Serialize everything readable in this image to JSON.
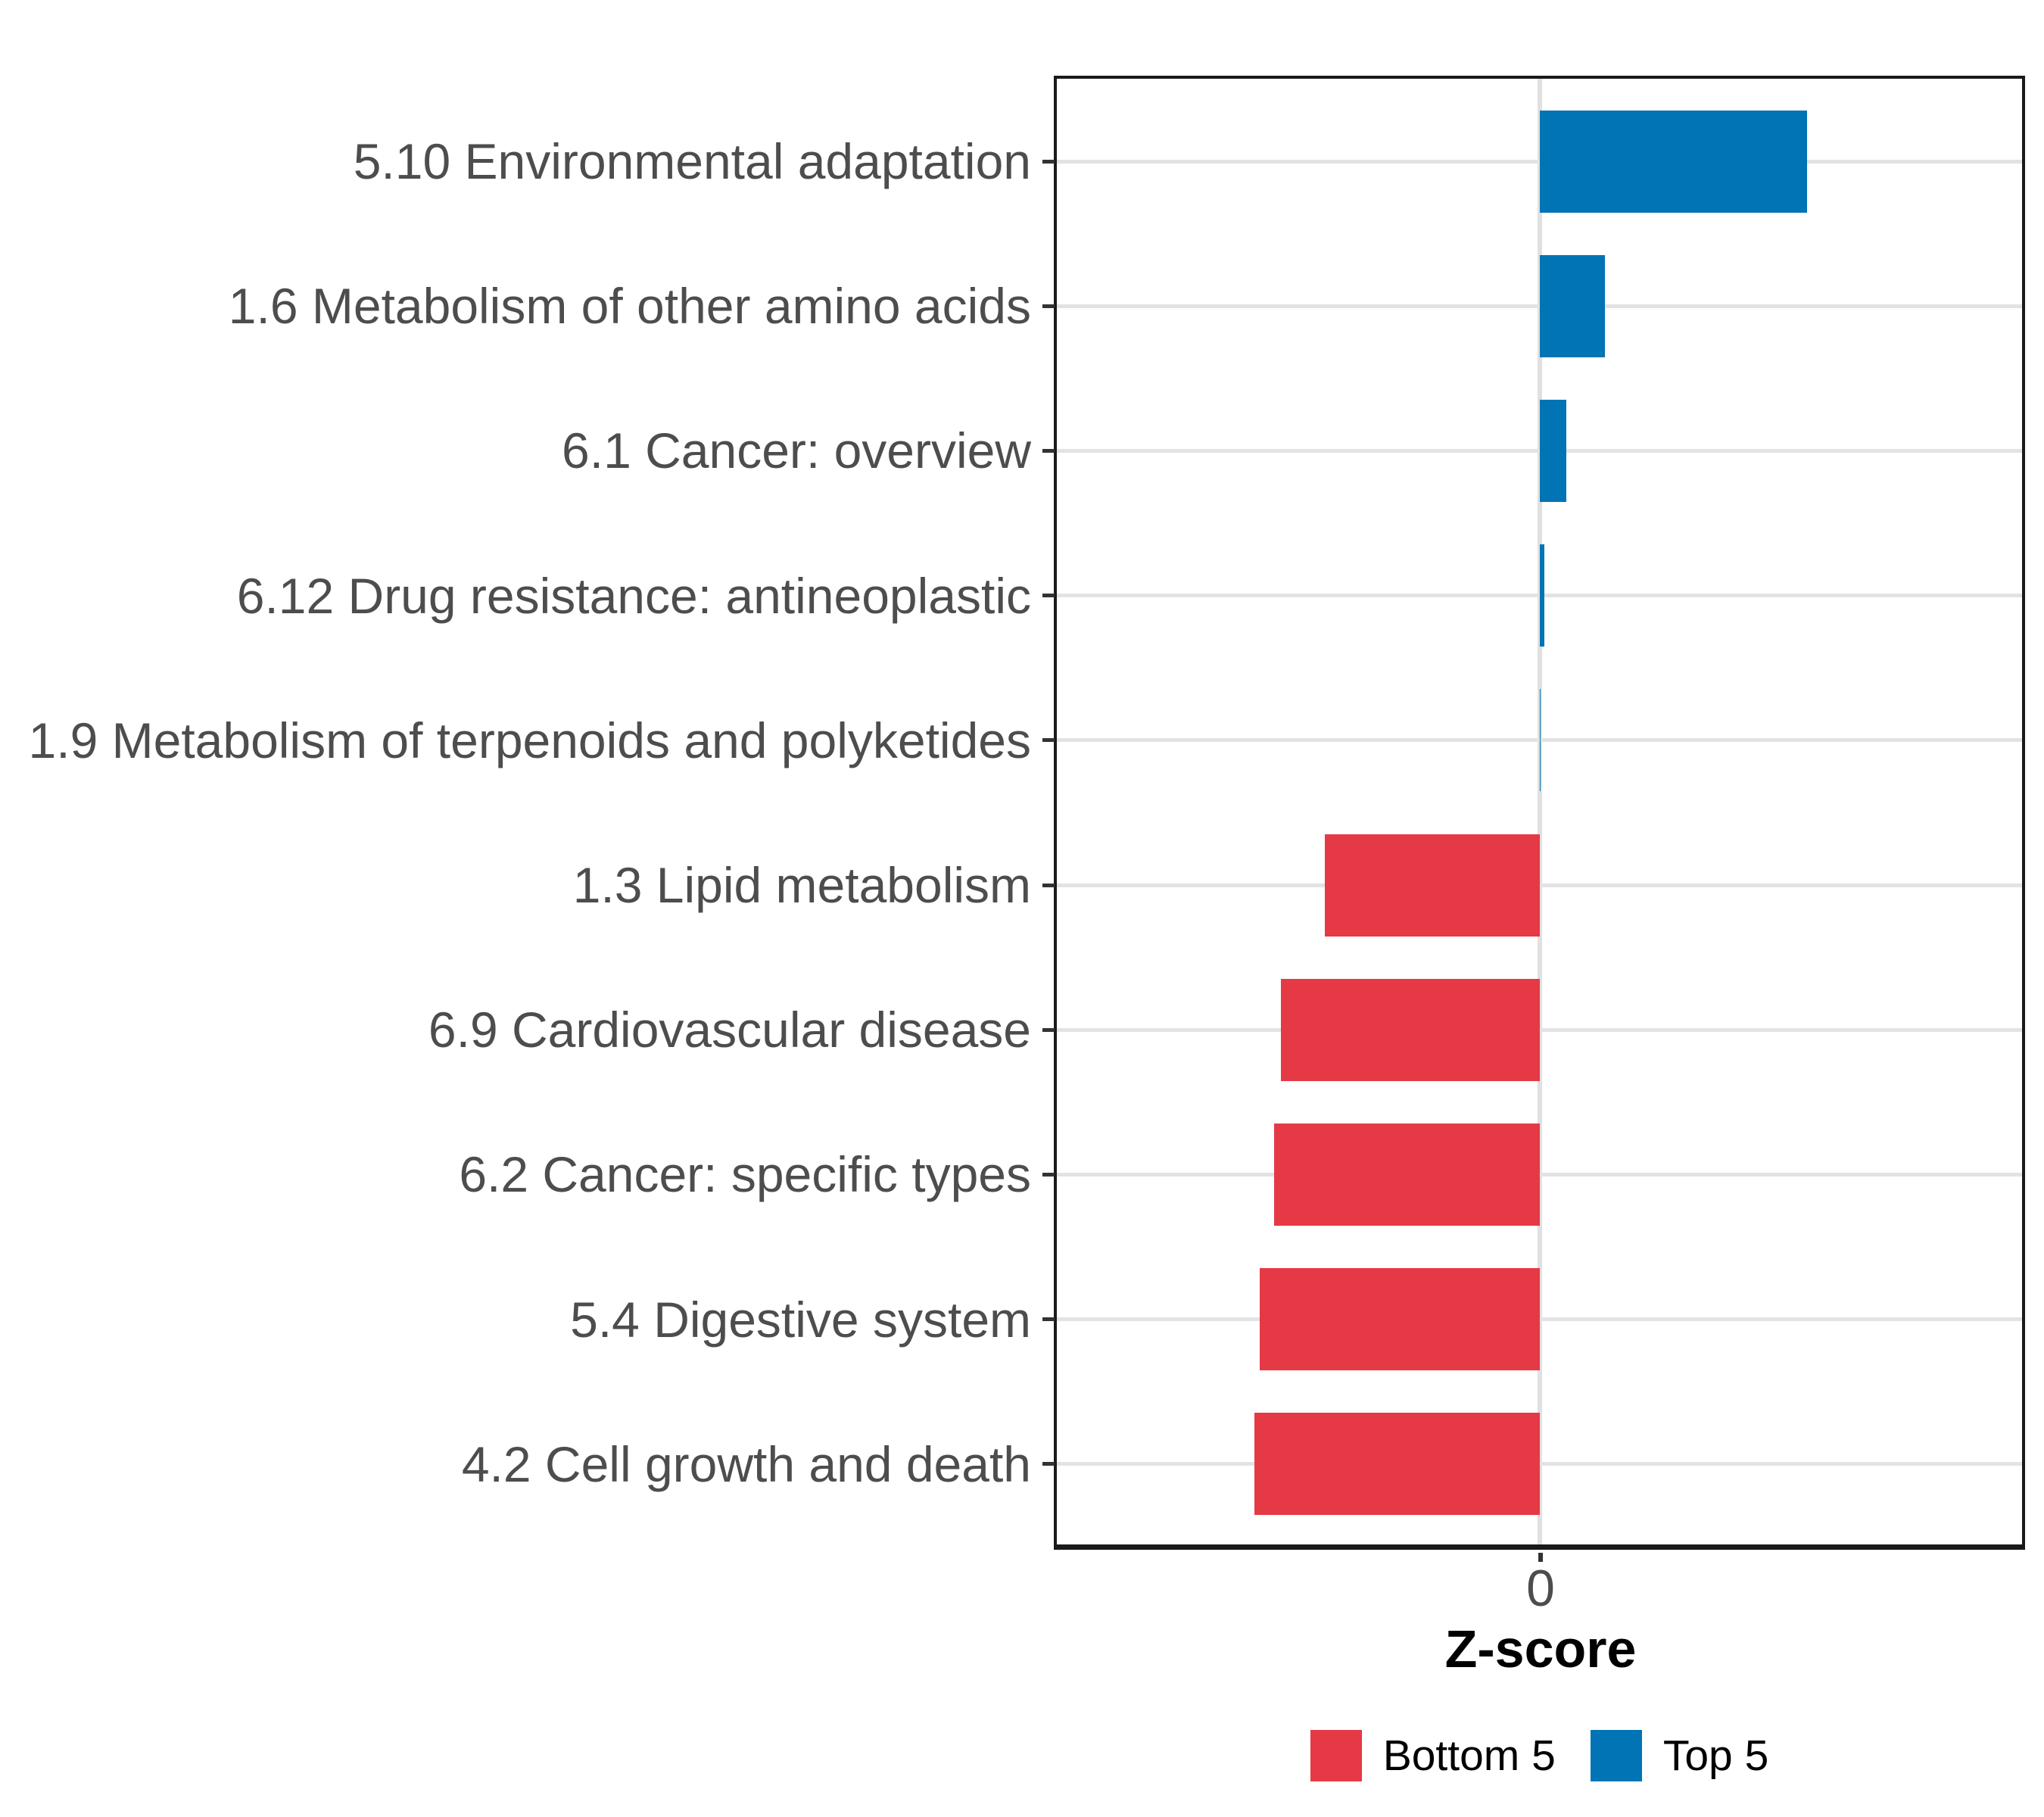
{
  "chart_data": {
    "type": "bar",
    "orientation": "horizontal",
    "title": "",
    "xlabel": "Z-score",
    "ylabel": "",
    "xlim": [
      -2,
      2
    ],
    "x_ticks": [
      0
    ],
    "x_tick_labels": [
      "0"
    ],
    "grid": "horizontal major gridlines per category plus vertical line at 0",
    "legend_position": "bottom",
    "bars": [
      {
        "label": "5.10 Environmental adaptation",
        "value": 1.11,
        "group": "Top 5"
      },
      {
        "label": "1.6 Metabolism of other amino acids",
        "value": 0.27,
        "group": "Top 5"
      },
      {
        "label": "6.1 Cancer: overview",
        "value": 0.11,
        "group": "Top 5"
      },
      {
        "label": "6.12 Drug resistance: antineoplastic",
        "value": 0.02,
        "group": "Top 5"
      },
      {
        "label": "1.9 Metabolism of terpenoids and polyketides",
        "value": 0.005,
        "group": "Top 5"
      },
      {
        "label": "1.3 Lipid metabolism",
        "value": -0.89,
        "group": "Bottom 5"
      },
      {
        "label": "6.9 Cardiovascular disease",
        "value": -1.07,
        "group": "Bottom 5"
      },
      {
        "label": "6.2 Cancer: specific types",
        "value": -1.1,
        "group": "Bottom 5"
      },
      {
        "label": "5.4 Digestive system",
        "value": -1.16,
        "group": "Bottom 5"
      },
      {
        "label": "4.2 Cell growth and death",
        "value": -1.18,
        "group": "Bottom 5"
      }
    ],
    "legend": {
      "entries": [
        {
          "label": "Bottom 5",
          "color": "#e53945"
        },
        {
          "label": "Top 5",
          "color": "#0074b4"
        }
      ]
    },
    "colors": {
      "bottom5": "#e53945",
      "top5": "#0074b4",
      "gridline": "#e3e3e3",
      "zero_line": "#e0e0e0",
      "axis_text": "#4d4d4d",
      "tick_mark": "#333333",
      "panel_border": "#1a1a1a",
      "background": "#ffffff"
    }
  }
}
